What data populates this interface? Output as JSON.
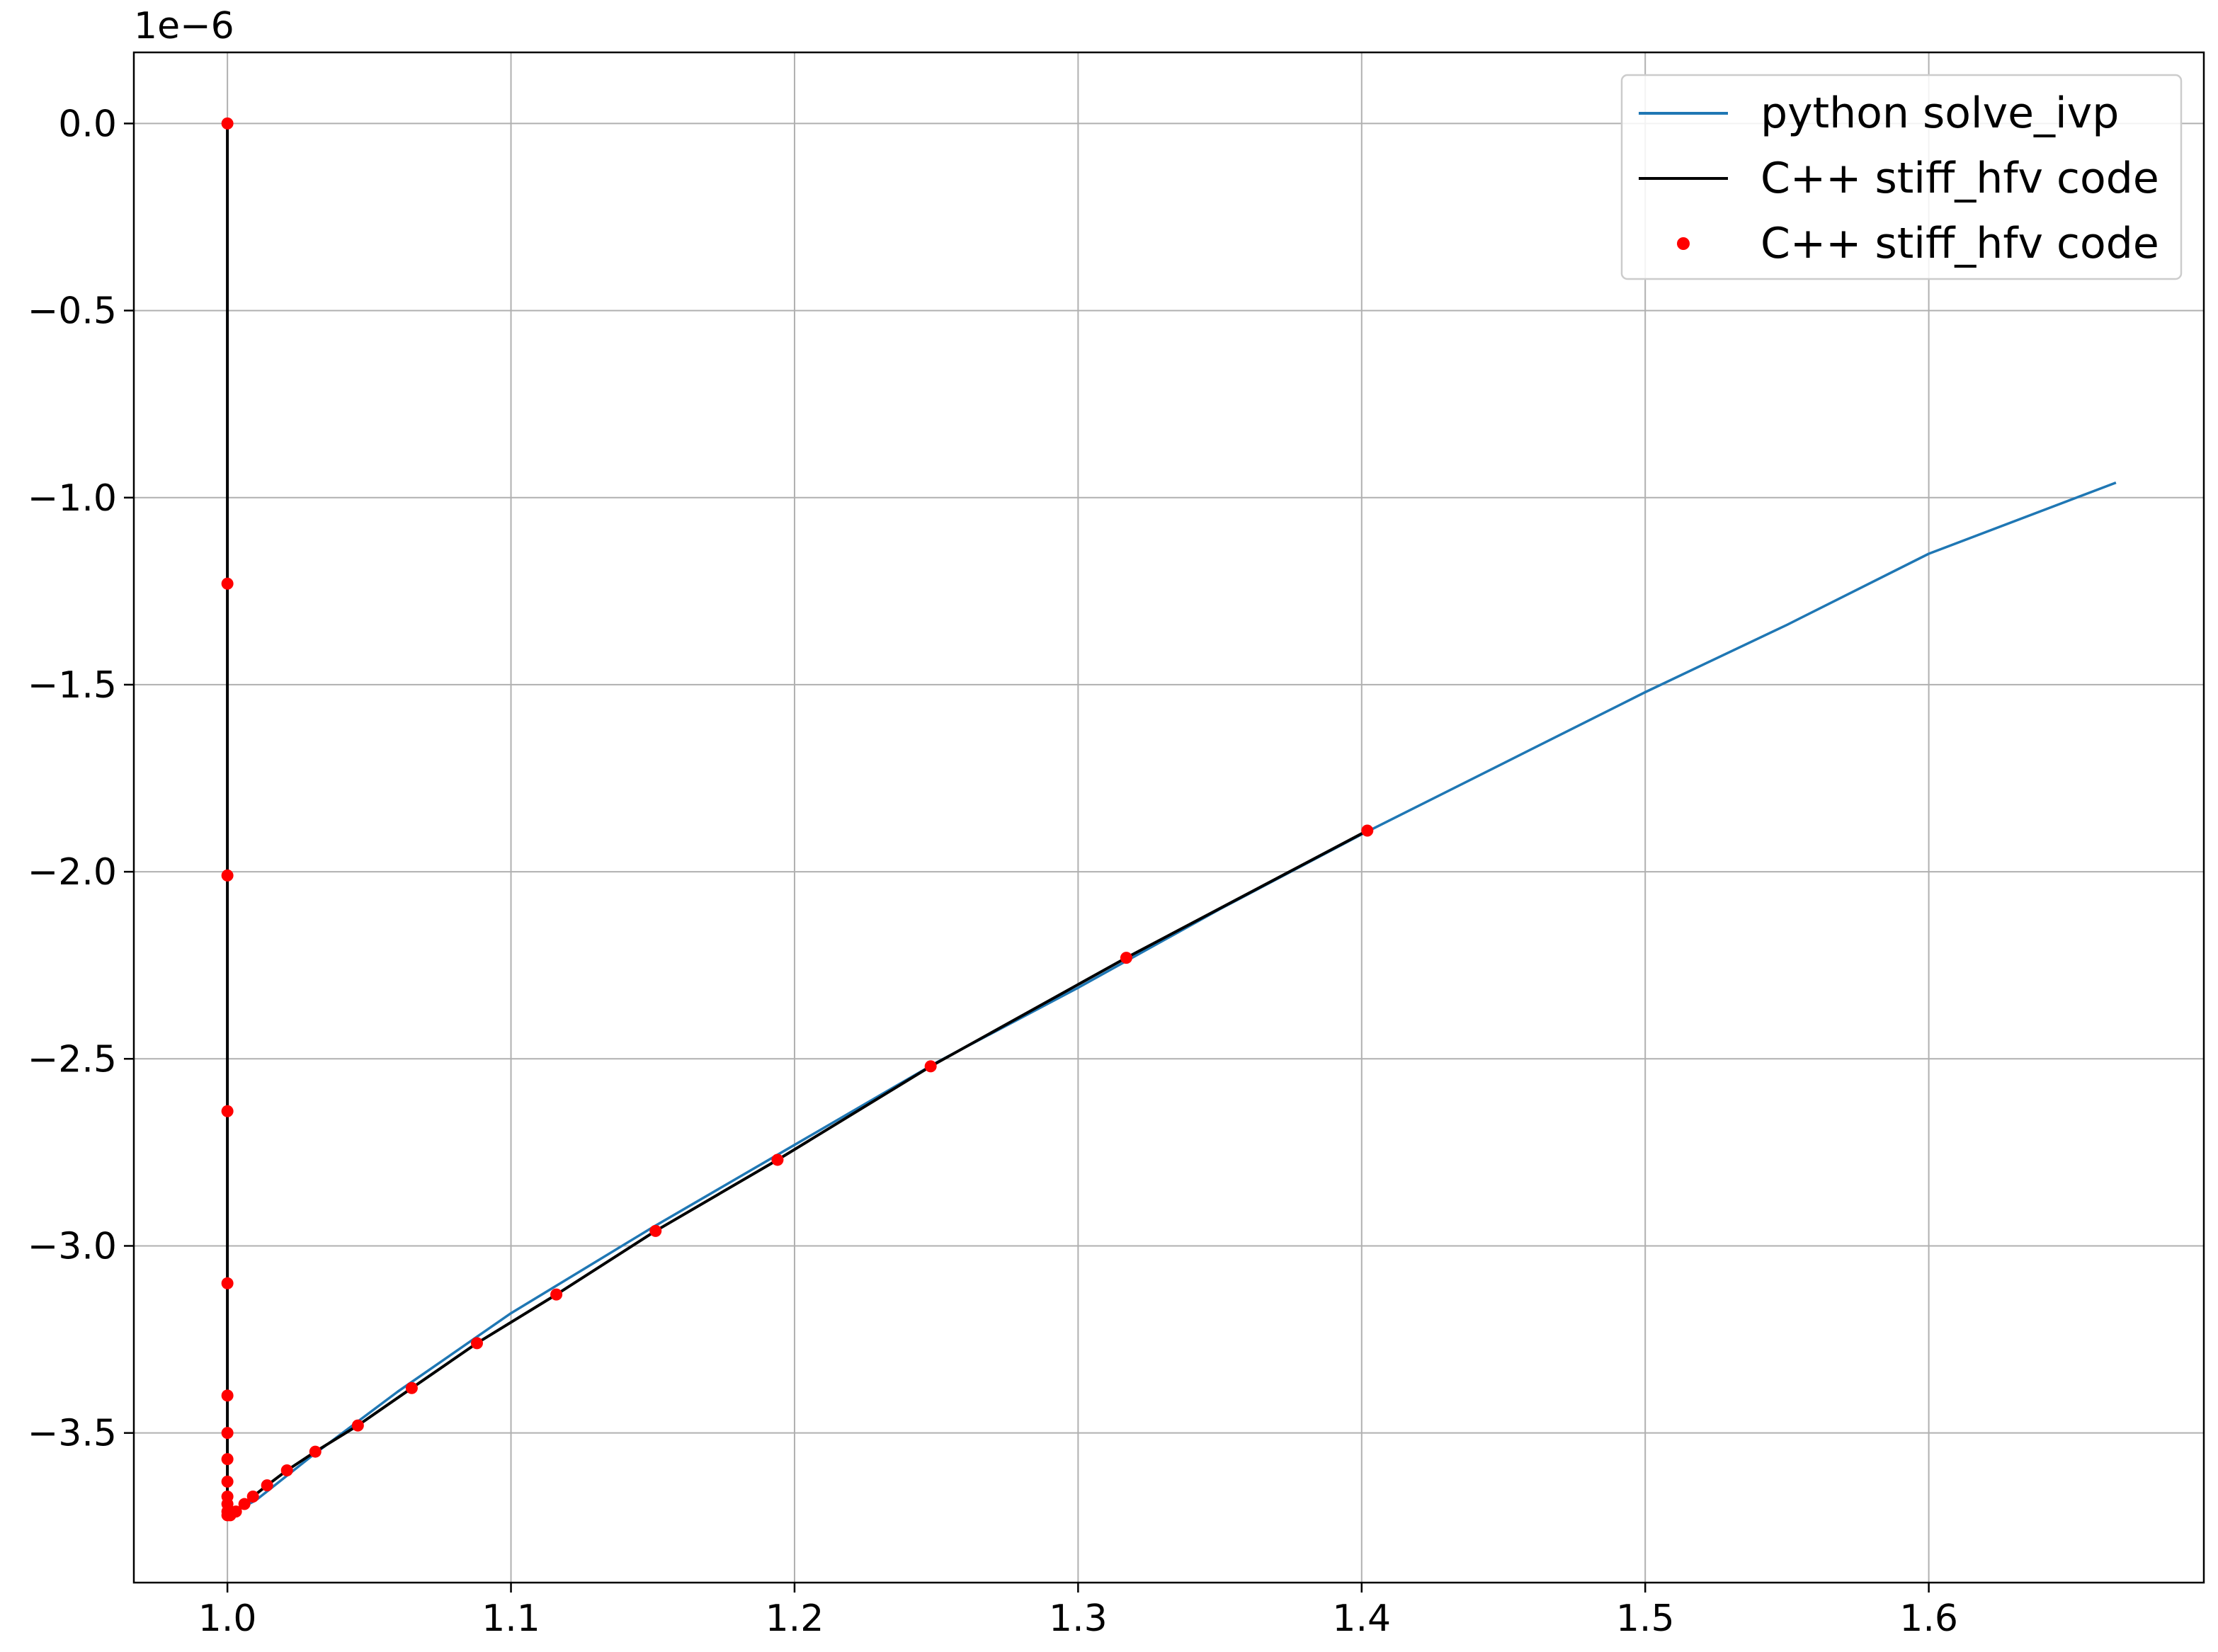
{
  "chart_data": {
    "type": "line",
    "title": "",
    "xlabel": "",
    "ylabel": "",
    "y_offset_label": "1e−6",
    "xlim": [
      0.967,
      1.697
    ],
    "ylim": [
      -3.9,
      0.19
    ],
    "x_ticks": [
      1.0,
      1.1,
      1.2,
      1.3,
      1.4,
      1.5,
      1.6
    ],
    "x_tick_labels": [
      "1.0",
      "1.1",
      "1.2",
      "1.3",
      "1.4",
      "1.5",
      "1.6"
    ],
    "y_ticks": [
      0.0,
      -0.5,
      -1.0,
      -1.5,
      -2.0,
      -2.5,
      -3.0,
      -3.5
    ],
    "y_tick_labels": [
      "0.0",
      "−0.5",
      "−1.0",
      "−1.5",
      "−2.0",
      "−2.5",
      "−3.0",
      "−3.5"
    ],
    "grid": true,
    "legend_position": "top-right",
    "colors": {
      "python_line": "#1f77b4",
      "cpp_line": "#000000",
      "cpp_points": "#ff0000",
      "grid": "#b0b0b0",
      "legend_border": "#cccccc"
    },
    "series": [
      {
        "name": "python solve_ivp",
        "kind": "line",
        "x": [
          1.0,
          1.0,
          1.0,
          1.0,
          1.0005,
          1.002,
          1.005,
          1.01,
          1.03,
          1.06,
          1.1,
          1.15,
          1.2,
          1.25,
          1.3,
          1.35,
          1.4,
          1.45,
          1.5,
          1.55,
          1.6,
          1.666
        ],
        "y": [
          0.0,
          -1.5,
          -3.0,
          -3.7,
          -3.72,
          -3.71,
          -3.7,
          -3.68,
          -3.56,
          -3.39,
          -3.18,
          -2.95,
          -2.73,
          -2.51,
          -2.31,
          -2.1,
          -1.9,
          -1.71,
          -1.52,
          -1.34,
          -1.15,
          -0.96
        ]
      },
      {
        "name": "C++ stiff_hfv code",
        "kind": "line",
        "x": [
          1.0,
          1.0,
          1.0,
          1.0,
          1.0,
          1.0,
          1.0,
          1.0,
          1.0,
          1.0,
          1.0,
          1.0,
          1.0,
          1.001,
          1.003,
          1.006,
          1.009,
          1.014,
          1.021,
          1.031,
          1.046,
          1.065,
          1.088,
          1.116,
          1.151,
          1.194,
          1.248,
          1.317,
          1.402
        ],
        "y": [
          0.0,
          -1.23,
          -2.01,
          -2.64,
          -3.1,
          -3.4,
          -3.5,
          -3.57,
          -3.63,
          -3.67,
          -3.69,
          -3.71,
          -3.72,
          -3.72,
          -3.71,
          -3.69,
          -3.67,
          -3.64,
          -3.6,
          -3.55,
          -3.48,
          -3.38,
          -3.26,
          -3.13,
          -2.96,
          -2.77,
          -2.52,
          -2.23,
          -1.89
        ]
      },
      {
        "name": "C++ stiff_hfv code",
        "kind": "scatter",
        "x": [
          1.0,
          1.0,
          1.0,
          1.0,
          1.0,
          1.0,
          1.0,
          1.0,
          1.0,
          1.0,
          1.0,
          1.0,
          1.0,
          1.001,
          1.003,
          1.006,
          1.009,
          1.014,
          1.021,
          1.031,
          1.046,
          1.065,
          1.088,
          1.116,
          1.151,
          1.194,
          1.248,
          1.317,
          1.402
        ],
        "y": [
          0.0,
          -1.23,
          -2.01,
          -2.64,
          -3.1,
          -3.4,
          -3.5,
          -3.57,
          -3.63,
          -3.67,
          -3.69,
          -3.71,
          -3.72,
          -3.72,
          -3.71,
          -3.69,
          -3.67,
          -3.64,
          -3.6,
          -3.55,
          -3.48,
          -3.38,
          -3.26,
          -3.13,
          -2.96,
          -2.77,
          -2.52,
          -2.23,
          -1.89
        ]
      }
    ]
  }
}
